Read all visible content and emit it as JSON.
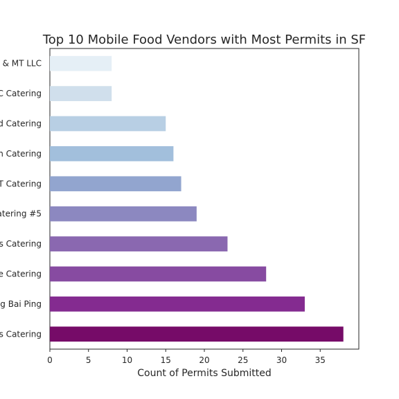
{
  "chart_data": {
    "type": "bar",
    "orientation": "horizontal",
    "title": "Top 10 Mobile Food Vendors with Most Permits in SF",
    "xlabel": "Count of Permits Submitted",
    "ylabel": "",
    "xlim": [
      0,
      40
    ],
    "xticks": [
      0,
      5,
      10,
      15,
      20,
      25,
      30,
      35
    ],
    "grid": false,
    "categories_top_to_bottom": [
      "& MT LLC",
      "C Catering",
      "d Catering",
      "n Catering",
      "T Catering",
      "Catering #5",
      "'s Catering",
      "e Catering",
      "g Bai Ping",
      "es Catering"
    ],
    "values_top_to_bottom": [
      8,
      8,
      15,
      16,
      17,
      19,
      23,
      28,
      33,
      38
    ],
    "colors_top_to_bottom": [
      "#e5eff6",
      "#d0dfec",
      "#b8cfe4",
      "#a2bfdc",
      "#92a5cf",
      "#8c88c0",
      "#8a68b0",
      "#874ba1",
      "#842b90",
      "#760b68"
    ]
  }
}
